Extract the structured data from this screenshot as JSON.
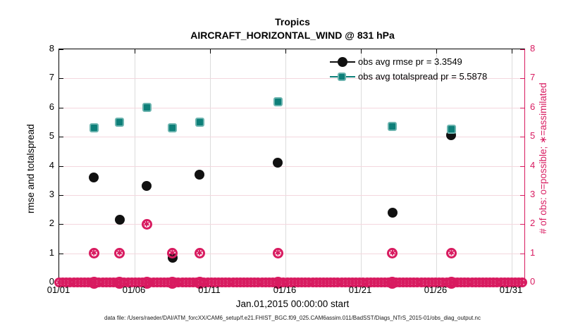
{
  "header": {
    "title": "Tropics",
    "subtitle": "AIRCRAFT_HORIZONTAL_WIND @ 831 hPa"
  },
  "footer": {
    "data_file_note": "data file: /Users/raeder/DAI/ATM_forcXX/CAM6_setup/f.e21.FHIST_BGC.f09_025.CAM6assim.011/BadSST/Diags_NTrS_2015-01/obs_diag_output.nc"
  },
  "colors": {
    "obs_accent": "#d81b60",
    "rmse_marker": "#111111",
    "spread_fill": "#0e7f79",
    "spread_edge": "#6cb4af",
    "grid_horizontal": "#f4d7de",
    "grid_vertical": "#dcdcdc"
  },
  "chart_data": {
    "type": "scatter",
    "title": "Tropics",
    "subtitle": "AIRCRAFT_HORIZONTAL_WIND @ 831 hPa",
    "xlabel": "Jan.01,2015 00:00:00 start",
    "ylabel_left": "rmse and totalspread",
    "ylabel_right": "# of obs: o=possible; ∗=assimilated",
    "ylim": [
      0,
      8
    ],
    "y_ticks": [
      0,
      1,
      2,
      3,
      4,
      5,
      6,
      7,
      8
    ],
    "x_axis_days": {
      "min": 1,
      "max": 31.9
    },
    "x_ticks": [
      {
        "day": 1,
        "label": "01/01"
      },
      {
        "day": 6,
        "label": "01/06"
      },
      {
        "day": 11,
        "label": "01/11"
      },
      {
        "day": 16,
        "label": "01/16"
      },
      {
        "day": 21,
        "label": "01/21"
      },
      {
        "day": 26,
        "label": "01/26"
      },
      {
        "day": 31,
        "label": "01/31"
      }
    ],
    "grid": true,
    "legend_position": "top-right inside plot, no box",
    "series": [
      {
        "name": "obs avg rmse pr = 3.3549",
        "marker": "filled-circle",
        "color": "#111111",
        "axis": "left",
        "points": [
          {
            "day": 3.3,
            "value": 3.6
          },
          {
            "day": 5.0,
            "value": 2.15
          },
          {
            "day": 6.8,
            "value": 3.3
          },
          {
            "day": 8.5,
            "value": 0.85
          },
          {
            "day": 10.3,
            "value": 3.7
          },
          {
            "day": 15.5,
            "value": 4.1
          },
          {
            "day": 23.1,
            "value": 2.4
          },
          {
            "day": 27.0,
            "value": 5.05
          }
        ]
      },
      {
        "name": "obs avg totalspread pr = 5.5878",
        "marker": "filled-square",
        "color": "#0e7f79",
        "axis": "left",
        "points": [
          {
            "day": 3.3,
            "value": 5.3
          },
          {
            "day": 5.0,
            "value": 5.5
          },
          {
            "day": 6.8,
            "value": 6.0
          },
          {
            "day": 8.5,
            "value": 5.3
          },
          {
            "day": 10.3,
            "value": 5.5
          },
          {
            "day": 15.5,
            "value": 6.2
          },
          {
            "day": 23.1,
            "value": 5.35
          },
          {
            "day": 27.0,
            "value": 5.25
          }
        ]
      },
      {
        "name": "# of obs assimilated",
        "marker": "circle-asterisk",
        "color": "#d81b60",
        "axis": "right",
        "points": [
          {
            "day": 3.3,
            "value": 1
          },
          {
            "day": 5.0,
            "value": 1
          },
          {
            "day": 6.8,
            "value": 2
          },
          {
            "day": 8.5,
            "value": 1
          },
          {
            "day": 10.3,
            "value": 1
          },
          {
            "day": 15.5,
            "value": 1
          },
          {
            "day": 23.1,
            "value": 1
          },
          {
            "day": 27.0,
            "value": 1
          }
        ]
      },
      {
        "name": "# of obs possible",
        "marker": "circle-asterisk-band",
        "color": "#d81b60",
        "axis": "right",
        "band_value": 0,
        "band_day_range": [
          1,
          31.85
        ]
      }
    ]
  }
}
